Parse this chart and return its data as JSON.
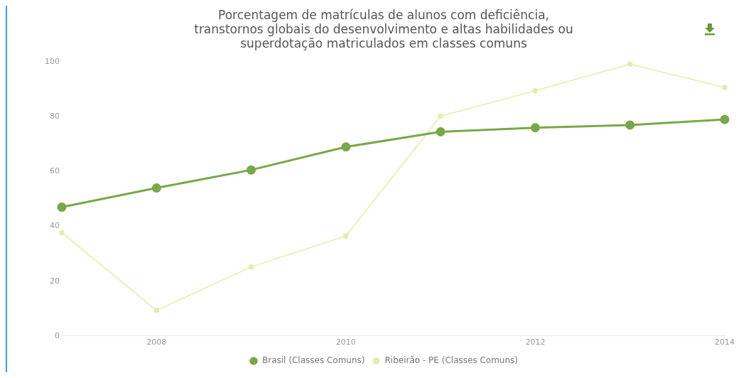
{
  "chart_data": {
    "type": "line",
    "title": "Porcentagem de matrículas de alunos com deficiência,\ntranstornos globais do desenvolvimento e altas habilidades ou\nsuperdotação matriculados em classes comuns",
    "x": [
      2007,
      2008,
      2009,
      2010,
      2011,
      2012,
      2013,
      2014
    ],
    "series": [
      {
        "name": "Brasil (Classes Comuns)",
        "color": "#78a848",
        "values": [
          47,
          54,
          60.6,
          69,
          74.5,
          76,
          77,
          79
        ],
        "marker": "circle"
      },
      {
        "name": "Ribeirão - PE (Classes Comuns)",
        "color": "#e0eeaa",
        "values": [
          37.7,
          9.3,
          25.2,
          36.5,
          80.2,
          89.5,
          99.2,
          90.7
        ],
        "marker": "circle"
      }
    ],
    "xlim": [
      2007,
      2014
    ],
    "xticks": [
      2008,
      2010,
      2012,
      2014
    ],
    "ylim": [
      0,
      100
    ],
    "yticks": [
      0,
      20,
      40,
      60,
      80,
      100
    ],
    "grid": false,
    "legend": "bottom"
  }
}
